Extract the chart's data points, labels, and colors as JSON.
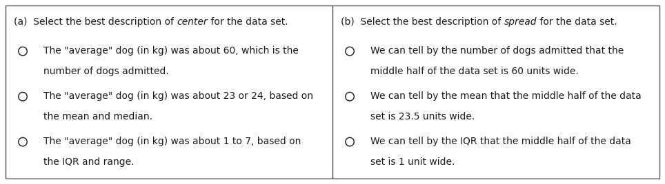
{
  "bg_color": "#ffffff",
  "border_color": "#555555",
  "fig_width": 9.64,
  "fig_height": 2.68,
  "panel_a": {
    "header_pre": "(a)  Select the best description of ",
    "header_italic": "center",
    "header_post": " for the data set.",
    "options": [
      {
        "line1": "The \"average\" dog (in kg) was about 60, which is the",
        "line2": "number of dogs admitted."
      },
      {
        "line1": "The \"average\" dog (in kg) was about 23 or 24, based on",
        "line2": "the mean and median."
      },
      {
        "line1": "The \"average\" dog (in kg) was about 1 to 7, based on",
        "line2": "the IQR and range."
      }
    ]
  },
  "panel_b": {
    "header_pre": "(b)  Select the best description of ",
    "header_italic": "spread",
    "header_post": " for the data set.",
    "options": [
      {
        "line1": "We can tell by the number of dogs admitted that the",
        "line2": "middle half of the data set is 60 units wide."
      },
      {
        "line1": "We can tell by the mean that the middle half of the data",
        "line2": "set is 23.5 units wide."
      },
      {
        "line1": "We can tell by the IQR that the middle half of the data",
        "line2": "set is 1 unit wide."
      }
    ]
  },
  "font_size": 10.0,
  "text_color": "#1a1a1a",
  "border_lw": 1.0
}
